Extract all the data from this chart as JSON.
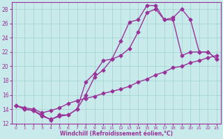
{
  "xlabel": "Windchill (Refroidissement éolien,°C)",
  "bg_color": "#c8eaea",
  "line_color": "#993399",
  "marker": "D",
  "markersize": 2.5,
  "linewidth": 1.0,
  "xlim": [
    -0.5,
    23.5
  ],
  "ylim": [
    12,
    29
  ],
  "yticks": [
    12,
    14,
    16,
    18,
    20,
    22,
    24,
    26,
    28
  ],
  "xticks": [
    0,
    1,
    2,
    3,
    4,
    5,
    6,
    7,
    8,
    9,
    10,
    11,
    12,
    13,
    14,
    15,
    16,
    17,
    18,
    19,
    20,
    21,
    22,
    23
  ],
  "grid_color": "#a0d0d0",
  "series1_x": [
    0,
    1,
    2,
    3,
    4,
    5,
    6,
    7,
    8,
    9,
    10,
    11,
    12,
    13,
    14,
    15,
    16,
    17,
    18,
    19,
    20,
    21,
    22,
    23
  ],
  "series1_y": [
    14.5,
    14.0,
    13.8,
    13.0,
    12.6,
    13.0,
    13.2,
    14.0,
    16.0,
    18.5,
    19.5,
    21.0,
    23.5,
    26.2,
    26.5,
    28.5,
    28.5,
    26.5,
    26.8,
    28.0,
    26.5,
    22.0,
    22.0,
    21.0
  ],
  "series2_x": [
    0,
    1,
    2,
    3,
    4,
    5,
    6,
    7,
    8,
    9,
    10,
    11,
    12,
    13,
    14,
    15,
    16,
    17,
    18,
    19,
    20,
    21,
    22,
    23
  ],
  "series2_y": [
    14.5,
    14.0,
    13.8,
    13.2,
    12.5,
    13.2,
    13.2,
    14.0,
    17.8,
    19.0,
    20.8,
    21.0,
    21.5,
    22.5,
    24.8,
    27.5,
    28.0,
    26.5,
    26.5,
    21.5,
    22.0,
    22.0,
    22.0,
    21.0
  ],
  "series3_x": [
    0,
    1,
    2,
    3,
    4,
    5,
    6,
    7,
    8,
    9,
    10,
    11,
    12,
    13,
    14,
    15,
    16,
    17,
    18,
    19,
    20,
    21,
    22,
    23
  ],
  "series3_y": [
    14.5,
    14.2,
    14.0,
    13.5,
    13.8,
    14.2,
    14.8,
    15.2,
    15.5,
    15.8,
    16.2,
    16.5,
    16.8,
    17.2,
    17.8,
    18.2,
    18.8,
    19.2,
    19.8,
    20.0,
    20.5,
    20.8,
    21.2,
    21.5
  ]
}
